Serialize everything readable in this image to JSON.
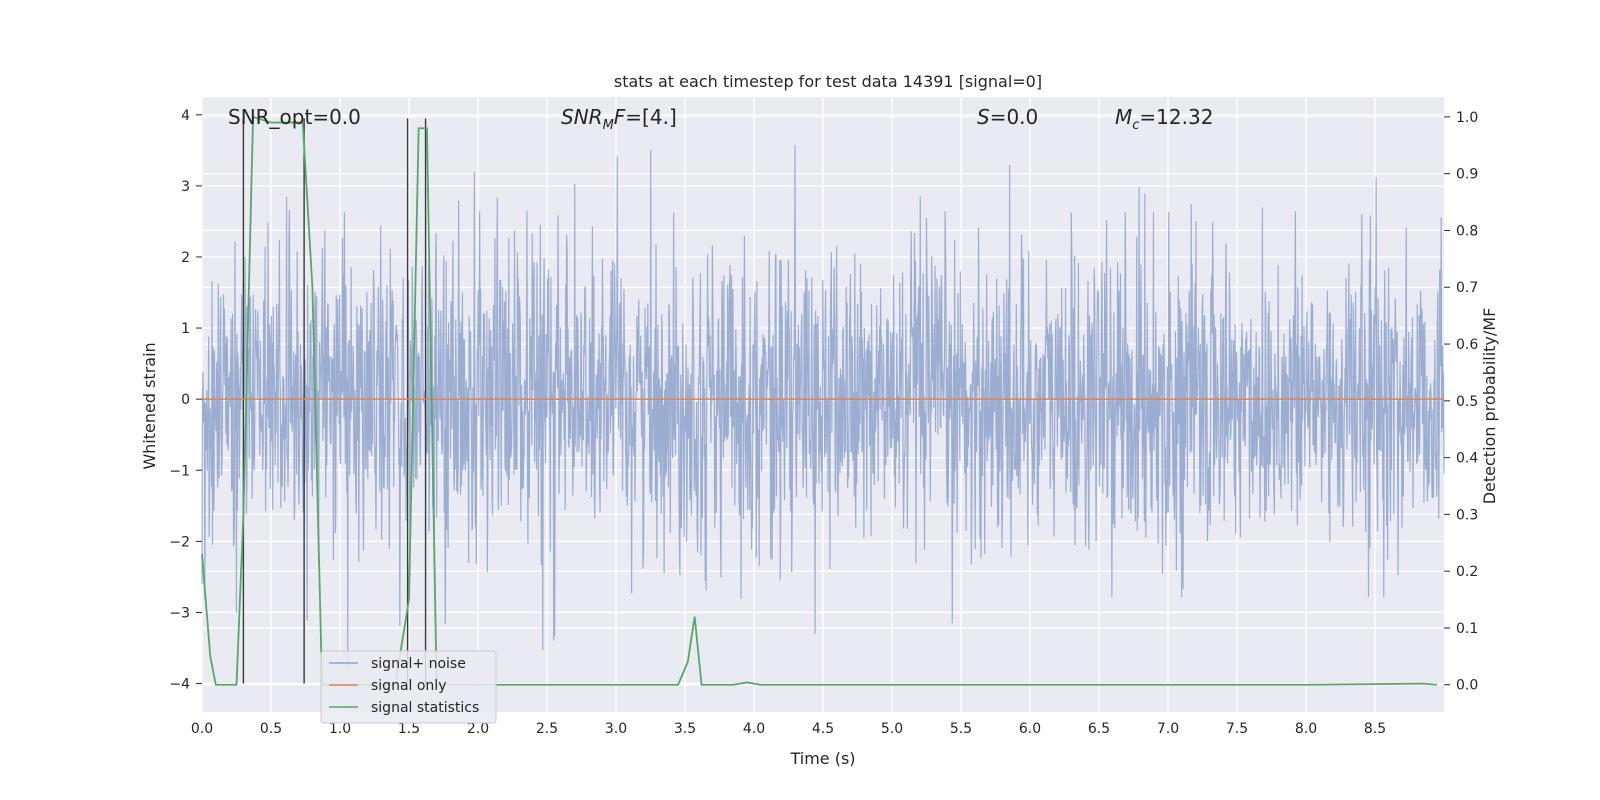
{
  "chart_data": {
    "type": "line",
    "title": "stats at each timestep for test data 14391 [signal=0]",
    "xlabel": "Time (s)",
    "ylabel": "Whitened strain",
    "y2label": "Detection probability/MF",
    "xlim": [
      0.0,
      9.0
    ],
    "ylim": [
      -4.4,
      4.25
    ],
    "y2lim": [
      -0.048,
      1.035
    ],
    "x_ticks": [
      "0.0",
      "0.5",
      "1.0",
      "1.5",
      "2.0",
      "2.5",
      "3.0",
      "3.5",
      "4.0",
      "4.5",
      "5.0",
      "5.5",
      "6.0",
      "6.5",
      "7.0",
      "7.5",
      "8.0",
      "8.5"
    ],
    "y_ticks": [
      "4",
      "3",
      "2",
      "1",
      "0",
      "−1",
      "−2",
      "−3",
      "−4"
    ],
    "y2_ticks": [
      "1.0",
      "0.9",
      "0.8",
      "0.7",
      "0.6",
      "0.5",
      "0.4",
      "0.3",
      "0.2",
      "0.1",
      "0.0"
    ],
    "grid": true,
    "legend_position": "lower-left",
    "annotations": {
      "snr_opt": "SNR_opt=0.0",
      "snr_mf": "=[4.]",
      "s_value": "=0.0",
      "mc_value": "=12.32"
    },
    "series": [
      {
        "name": "signal+ noise",
        "axis": "left",
        "color": "#8ea2cc",
        "note_values": "dense whitened noise, approx. amplitude within [-3.8, 3.9]",
        "envelope": {
          "mean": 0.0,
          "std": 1.0,
          "min": -3.8,
          "max": 3.9
        }
      },
      {
        "name": "signal only",
        "axis": "left",
        "color": "#dd8452",
        "x": [
          0.0,
          9.0
        ],
        "values": [
          0.0,
          0.0
        ]
      },
      {
        "name": "signal statistics",
        "axis": "right",
        "color": "#55a868",
        "x": [
          0.0,
          0.06,
          0.1,
          0.25,
          0.3,
          0.37,
          0.5,
          0.65,
          0.73,
          0.8,
          0.87,
          1.4,
          1.5,
          1.57,
          1.63,
          1.7,
          2.0,
          3.0,
          3.45,
          3.52,
          3.57,
          3.62,
          3.7,
          3.85,
          3.95,
          4.05,
          5.0,
          6.0,
          7.0,
          8.0,
          8.85,
          8.95
        ],
        "values": [
          0.23,
          0.05,
          0.0,
          0.0,
          0.3,
          1.0,
          0.99,
          0.99,
          0.99,
          0.7,
          0.0,
          0.0,
          0.15,
          0.98,
          0.98,
          0.0,
          0.0,
          0.0,
          0.0,
          0.04,
          0.12,
          0.0,
          0.0,
          0.0,
          0.004,
          0.0,
          0.0,
          0.0,
          0.0,
          0.0,
          0.002,
          0.0
        ]
      },
      {
        "name": "",
        "axis": "left",
        "color": "#3a3a3a",
        "style": "vertical-markers",
        "x": [
          0.3,
          0.74,
          1.49,
          1.62
        ],
        "y_top": 3.95,
        "y_bottom": -4.0
      }
    ]
  }
}
